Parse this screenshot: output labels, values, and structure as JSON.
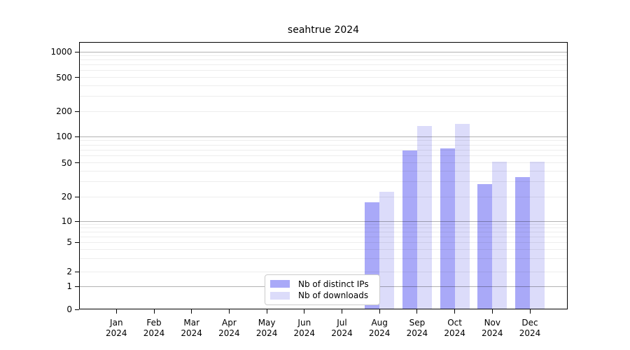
{
  "chart_data": {
    "type": "bar",
    "title": "seahtrue 2024",
    "categories": [
      "Jan 2024",
      "Feb 2024",
      "Mar 2024",
      "Apr 2024",
      "May 2024",
      "Jun 2024",
      "Jul 2024",
      "Aug 2024",
      "Sep 2024",
      "Oct 2024",
      "Nov 2024",
      "Dec 2024"
    ],
    "series": [
      {
        "name": "Nb of distinct IPs",
        "color": "#a9a9f8",
        "values": [
          0,
          0,
          0,
          0,
          0,
          0,
          0,
          17,
          70,
          73,
          28,
          34
        ]
      },
      {
        "name": "Nb of downloads",
        "color": "#dcdcfa",
        "values": [
          0,
          0,
          0,
          0,
          0,
          0,
          0,
          23,
          135,
          143,
          52,
          52
        ]
      }
    ],
    "y_ticks": [
      0,
      1,
      2,
      5,
      10,
      20,
      50,
      100,
      200,
      500,
      1000
    ],
    "ylim": [
      0,
      1000
    ],
    "y_scale": "log-like",
    "xlabel": "",
    "ylabel": "",
    "grid": true,
    "legend_position": "bottom-center"
  }
}
